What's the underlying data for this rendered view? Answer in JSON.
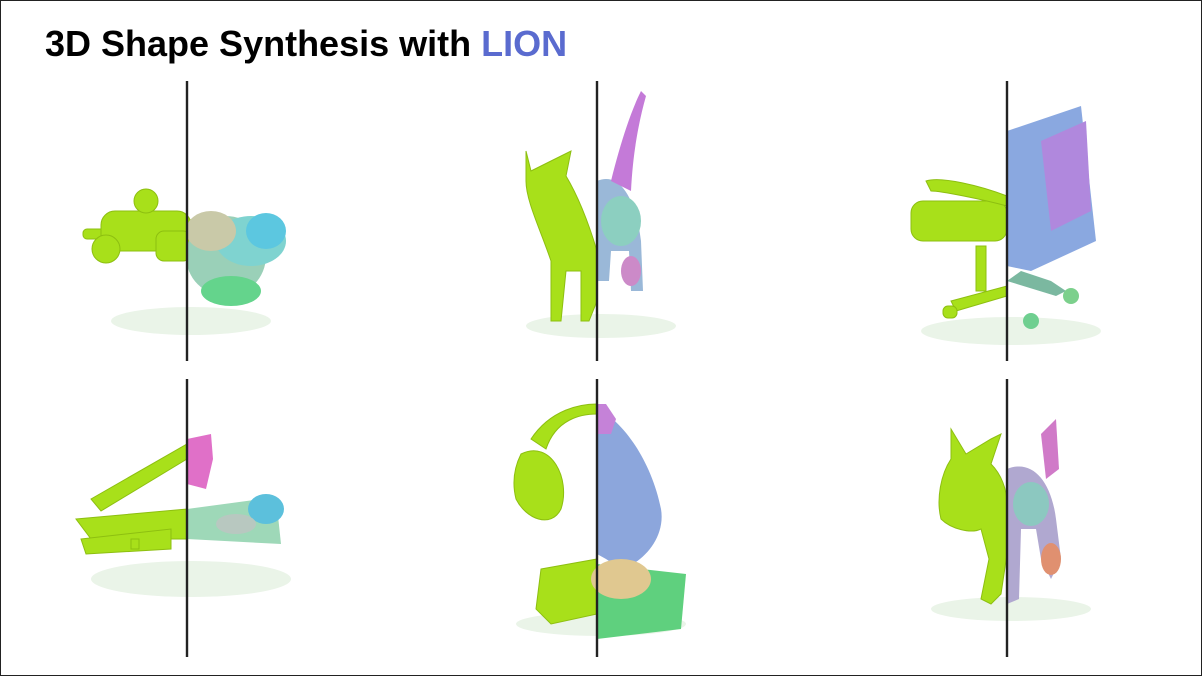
{
  "title": {
    "prefix": "3D Shape Synthesis with ",
    "highlight": "LION"
  },
  "colors": {
    "title": "#000000",
    "highlight": "#5a6bcf",
    "mesh": "#a8e01a",
    "divider": "#222222"
  },
  "panels": [
    {
      "id": "car",
      "left_half": "mesh",
      "right_half": "point-cloud"
    },
    {
      "id": "cat",
      "left_half": "mesh",
      "right_half": "point-cloud"
    },
    {
      "id": "chair",
      "left_half": "mesh",
      "right_half": "point-cloud"
    },
    {
      "id": "airplane",
      "left_half": "mesh",
      "right_half": "point-cloud"
    },
    {
      "id": "lamp",
      "left_half": "mesh",
      "right_half": "point-cloud"
    },
    {
      "id": "animal",
      "left_half": "mesh",
      "right_half": "point-cloud"
    }
  ]
}
